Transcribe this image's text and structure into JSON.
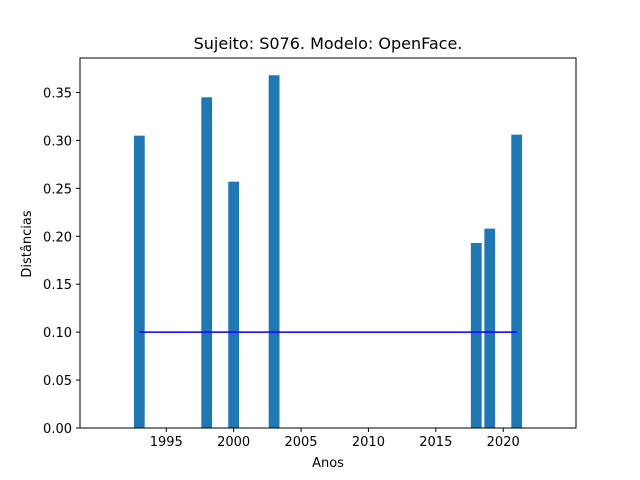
{
  "chart_data": {
    "type": "bar",
    "title": "Sujeito: S076. Modelo: OpenFace.",
    "xlabel": "Anos",
    "ylabel": "Distâncias",
    "xlim": [
      1988.6,
      2025.4
    ],
    "ylim": [
      0,
      0.386
    ],
    "x_ticks": [
      1995,
      2000,
      2005,
      2010,
      2015,
      2020
    ],
    "y_ticks": [
      0.0,
      0.05,
      0.1,
      0.15,
      0.2,
      0.25,
      0.3,
      0.35
    ],
    "x_tick_labels": [
      "1995",
      "2000",
      "2005",
      "2010",
      "2015",
      "2020"
    ],
    "y_tick_labels": [
      "0.00",
      "0.05",
      "0.10",
      "0.15",
      "0.20",
      "0.25",
      "0.30",
      "0.35"
    ],
    "bars": {
      "x": [
        1993,
        1998,
        2000,
        2003,
        2018,
        2019,
        2021
      ],
      "values": [
        0.305,
        0.345,
        0.257,
        0.368,
        0.193,
        0.208,
        0.306
      ],
      "width": 0.8,
      "color": "#1f77b4"
    },
    "threshold_line": {
      "x": [
        1993,
        2021
      ],
      "y": 0.1,
      "color": "#0000ff"
    },
    "grid": false
  }
}
